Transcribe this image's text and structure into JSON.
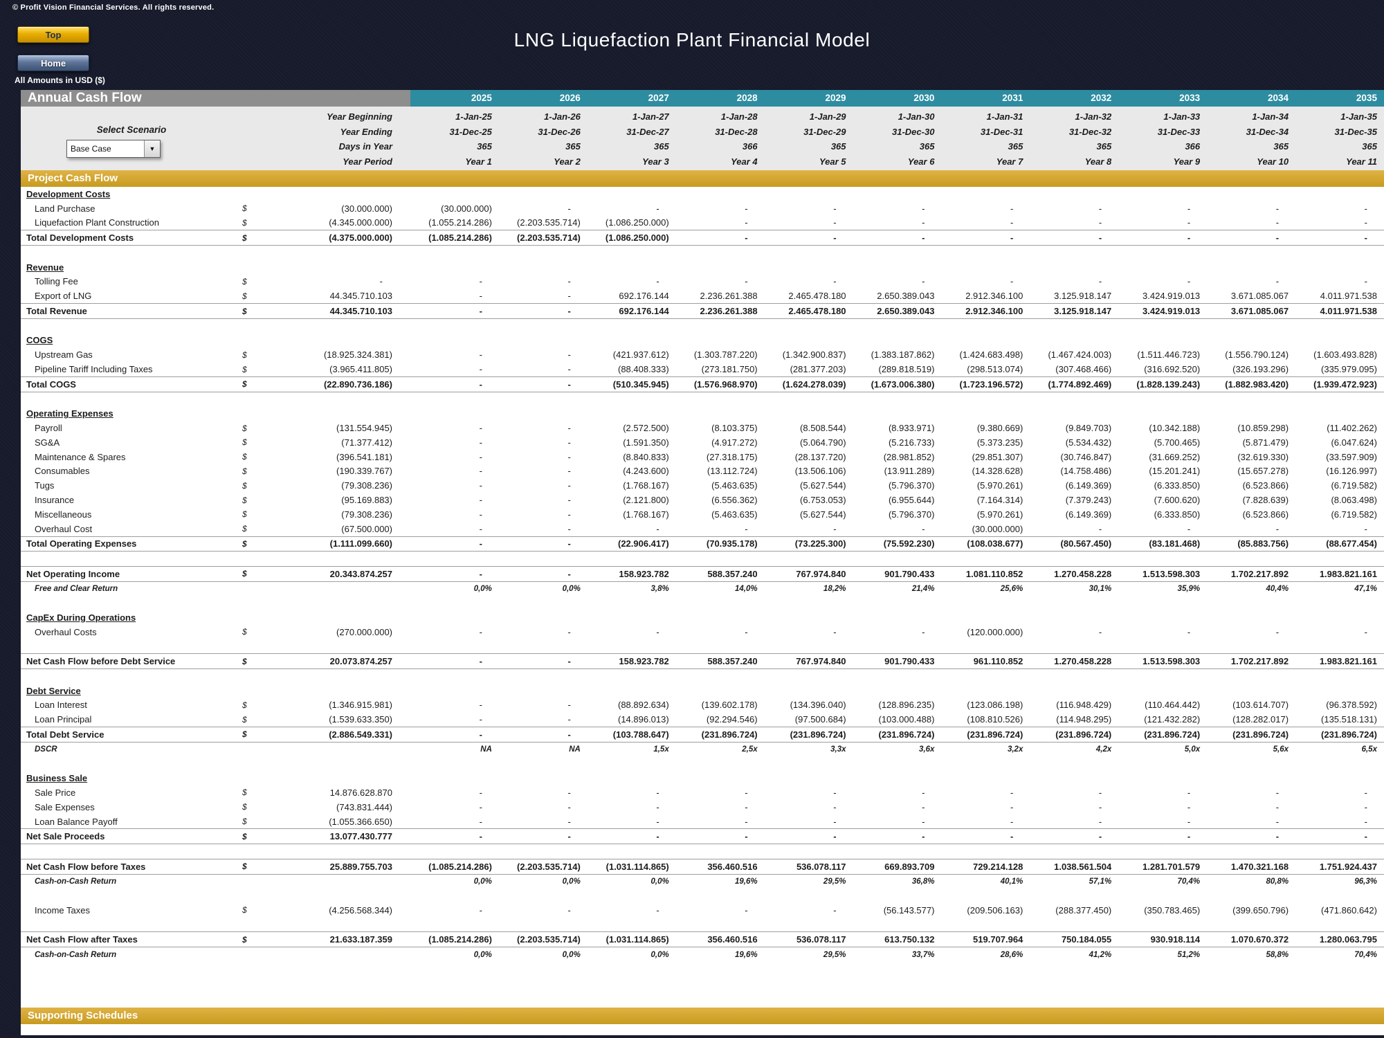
{
  "meta": {
    "copyright": "© Profit Vision Financial Services. All rights reserved.",
    "title": "LNG Liquefaction Plant Financial Model",
    "amounts_note": "All Amounts in  USD ($)"
  },
  "buttons": {
    "top": "Top",
    "home": "Home"
  },
  "scenario": {
    "label": "Select Scenario",
    "selected": "Base Case",
    "arrow_icon": "▼"
  },
  "colors": {
    "page_bg": "#161a2b",
    "teal_header": "#2d8ca0",
    "gray_header": "#8e8e8e",
    "gold_bar": "#cf9f2b",
    "gold_button": "#e8ad00",
    "home_button": "#5e7499",
    "teal_text": "#1b7f98",
    "info_band": "#e9e9ea"
  },
  "table": {
    "left_header": "Annual Cash Flow",
    "years": [
      "2025",
      "2026",
      "2027",
      "2028",
      "2029",
      "2030",
      "2031",
      "2032",
      "2033",
      "2034",
      "2035"
    ],
    "info_rows": [
      {
        "label": "Year Beginning",
        "values": [
          "1-Jan-25",
          "1-Jan-26",
          "1-Jan-27",
          "1-Jan-28",
          "1-Jan-29",
          "1-Jan-30",
          "1-Jan-31",
          "1-Jan-32",
          "1-Jan-33",
          "1-Jan-34",
          "1-Jan-35"
        ]
      },
      {
        "label": "Year Ending",
        "values": [
          "31-Dec-25",
          "31-Dec-26",
          "31-Dec-27",
          "31-Dec-28",
          "31-Dec-29",
          "31-Dec-30",
          "31-Dec-31",
          "31-Dec-32",
          "31-Dec-33",
          "31-Dec-34",
          "31-Dec-35"
        ]
      },
      {
        "label": "Days in Year",
        "values": [
          "365",
          "365",
          "365",
          "366",
          "365",
          "365",
          "365",
          "365",
          "366",
          "365",
          "365"
        ]
      },
      {
        "label": "Year Period",
        "values": [
          "Year 1",
          "Year 2",
          "Year 3",
          "Year 4",
          "Year 5",
          "Year 6",
          "Year 7",
          "Year 8",
          "Year 9",
          "Year 10",
          "Year 11"
        ]
      }
    ],
    "section_bar": "Project Cash Flow",
    "footer_bar": "Supporting Schedules",
    "rows": [
      {
        "t": "h",
        "label": "Development Costs"
      },
      {
        "t": "d",
        "label": "Land Purchase",
        "dollar": "$",
        "total": "(30.000.000)",
        "v": [
          "(30.000.000)",
          "-",
          "-",
          "-",
          "-",
          "-",
          "-",
          "-",
          "-",
          "-",
          "-"
        ]
      },
      {
        "t": "d",
        "label": "Liquefaction Plant Construction",
        "dollar": "$",
        "total": "(4.345.000.000)",
        "v": [
          "(1.055.214.286)",
          "(2.203.535.714)",
          "(1.086.250.000)",
          "-",
          "-",
          "-",
          "-",
          "-",
          "-",
          "-",
          "-"
        ]
      },
      {
        "t": "t",
        "label": "Total Development Costs",
        "dollar": "$",
        "total": "(4.375.000.000)",
        "v": [
          "(1.085.214.286)",
          "(2.203.535.714)",
          "(1.086.250.000)",
          "-",
          "-",
          "-",
          "-",
          "-",
          "-",
          "-",
          "-"
        ]
      },
      {
        "t": "g"
      },
      {
        "t": "h",
        "label": "Revenue"
      },
      {
        "t": "d",
        "label": "Tolling Fee",
        "dollar": "$",
        "total": "-",
        "v": [
          "-",
          "-",
          "-",
          "-",
          "-",
          "-",
          "-",
          "-",
          "-",
          "-",
          "-"
        ]
      },
      {
        "t": "d",
        "label": "Export of LNG",
        "dollar": "$",
        "total": "44.345.710.103",
        "v": [
          "-",
          "-",
          "692.176.144",
          "2.236.261.388",
          "2.465.478.180",
          "2.650.389.043",
          "2.912.346.100",
          "3.125.918.147",
          "3.424.919.013",
          "3.671.085.067",
          "4.011.971.538"
        ]
      },
      {
        "t": "t",
        "label": "Total Revenue",
        "dollar": "$",
        "total": "44.345.710.103",
        "v": [
          "-",
          "-",
          "692.176.144",
          "2.236.261.388",
          "2.465.478.180",
          "2.650.389.043",
          "2.912.346.100",
          "3.125.918.147",
          "3.424.919.013",
          "3.671.085.067",
          "4.011.971.538"
        ]
      },
      {
        "t": "g"
      },
      {
        "t": "h",
        "label": "COGS"
      },
      {
        "t": "d",
        "label": "Upstream Gas",
        "dollar": "$",
        "total": "(18.925.324.381)",
        "v": [
          "-",
          "-",
          "(421.937.612)",
          "(1.303.787.220)",
          "(1.342.900.837)",
          "(1.383.187.862)",
          "(1.424.683.498)",
          "(1.467.424.003)",
          "(1.511.446.723)",
          "(1.556.790.124)",
          "(1.603.493.828)"
        ]
      },
      {
        "t": "d",
        "label": "Pipeline Tariff Including Taxes",
        "dollar": "$",
        "total": "(3.965.411.805)",
        "v": [
          "-",
          "-",
          "(88.408.333)",
          "(273.181.750)",
          "(281.377.203)",
          "(289.818.519)",
          "(298.513.074)",
          "(307.468.466)",
          "(316.692.520)",
          "(326.193.296)",
          "(335.979.095)"
        ]
      },
      {
        "t": "t",
        "label": "Total COGS",
        "dollar": "$",
        "total": "(22.890.736.186)",
        "v": [
          "-",
          "-",
          "(510.345.945)",
          "(1.576.968.970)",
          "(1.624.278.039)",
          "(1.673.006.380)",
          "(1.723.196.572)",
          "(1.774.892.469)",
          "(1.828.139.243)",
          "(1.882.983.420)",
          "(1.939.472.923)"
        ]
      },
      {
        "t": "g"
      },
      {
        "t": "h",
        "label": "Operating Expenses"
      },
      {
        "t": "d",
        "label": "Payroll",
        "dollar": "$",
        "total": "(131.554.945)",
        "v": [
          "-",
          "-",
          "(2.572.500)",
          "(8.103.375)",
          "(8.508.544)",
          "(8.933.971)",
          "(9.380.669)",
          "(9.849.703)",
          "(10.342.188)",
          "(10.859.298)",
          "(11.402.262)"
        ]
      },
      {
        "t": "d",
        "label": "SG&A",
        "dollar": "$",
        "total": "(71.377.412)",
        "v": [
          "-",
          "-",
          "(1.591.350)",
          "(4.917.272)",
          "(5.064.790)",
          "(5.216.733)",
          "(5.373.235)",
          "(5.534.432)",
          "(5.700.465)",
          "(5.871.479)",
          "(6.047.624)"
        ]
      },
      {
        "t": "d",
        "label": "Maintenance & Spares",
        "dollar": "$",
        "total": "(396.541.181)",
        "v": [
          "-",
          "-",
          "(8.840.833)",
          "(27.318.175)",
          "(28.137.720)",
          "(28.981.852)",
          "(29.851.307)",
          "(30.746.847)",
          "(31.669.252)",
          "(32.619.330)",
          "(33.597.909)"
        ]
      },
      {
        "t": "d",
        "label": "Consumables",
        "dollar": "$",
        "total": "(190.339.767)",
        "v": [
          "-",
          "-",
          "(4.243.600)",
          "(13.112.724)",
          "(13.506.106)",
          "(13.911.289)",
          "(14.328.628)",
          "(14.758.486)",
          "(15.201.241)",
          "(15.657.278)",
          "(16.126.997)"
        ]
      },
      {
        "t": "d",
        "label": "Tugs",
        "dollar": "$",
        "total": "(79.308.236)",
        "v": [
          "-",
          "-",
          "(1.768.167)",
          "(5.463.635)",
          "(5.627.544)",
          "(5.796.370)",
          "(5.970.261)",
          "(6.149.369)",
          "(6.333.850)",
          "(6.523.866)",
          "(6.719.582)"
        ]
      },
      {
        "t": "d",
        "label": "Insurance",
        "dollar": "$",
        "total": "(95.169.883)",
        "v": [
          "-",
          "-",
          "(2.121.800)",
          "(6.556.362)",
          "(6.753.053)",
          "(6.955.644)",
          "(7.164.314)",
          "(7.379.243)",
          "(7.600.620)",
          "(7.828.639)",
          "(8.063.498)"
        ]
      },
      {
        "t": "d",
        "label": "Miscellaneous",
        "dollar": "$",
        "total": "(79.308.236)",
        "v": [
          "-",
          "-",
          "(1.768.167)",
          "(5.463.635)",
          "(5.627.544)",
          "(5.796.370)",
          "(5.970.261)",
          "(6.149.369)",
          "(6.333.850)",
          "(6.523.866)",
          "(6.719.582)"
        ]
      },
      {
        "t": "d",
        "label": "Overhaul Cost",
        "dollar": "$",
        "total": "(67.500.000)",
        "v": [
          "-",
          "-",
          "-",
          "-",
          "-",
          "-",
          "(30.000.000)",
          "-",
          "-",
          "-",
          "-"
        ]
      },
      {
        "t": "t",
        "label": "Total Operating Expenses",
        "dollar": "$",
        "total": "(1.111.099.660)",
        "v": [
          "-",
          "-",
          "(22.906.417)",
          "(70.935.178)",
          "(73.225.300)",
          "(75.592.230)",
          "(108.038.677)",
          "(80.567.450)",
          "(83.181.468)",
          "(85.883.756)",
          "(88.677.454)"
        ]
      },
      {
        "t": "g"
      },
      {
        "t": "t",
        "label": "Net Operating Income",
        "dollar": "$",
        "total": "20.343.874.257",
        "v": [
          "-",
          "-",
          "158.923.782",
          "588.357.240",
          "767.974.840",
          "901.790.433",
          "1.081.110.852",
          "1.270.458.228",
          "1.513.598.303",
          "1.702.217.892",
          "1.983.821.161"
        ]
      },
      {
        "t": "r",
        "label": "Free and Clear Return",
        "v": [
          "0,0%",
          "0,0%",
          "3,8%",
          "14,0%",
          "18,2%",
          "21,4%",
          "25,6%",
          "30,1%",
          "35,9%",
          "40,4%",
          "47,1%"
        ]
      },
      {
        "t": "g"
      },
      {
        "t": "h",
        "label": "CapEx During Operations"
      },
      {
        "t": "d",
        "label": "Overhaul Costs",
        "dollar": "$",
        "total": "(270.000.000)",
        "v": [
          "-",
          "-",
          "-",
          "-",
          "-",
          "-",
          "(120.000.000)",
          "-",
          "-",
          "-",
          "-"
        ]
      },
      {
        "t": "g"
      },
      {
        "t": "t",
        "label": "Net Cash Flow before Debt Service",
        "dollar": "$",
        "total": "20.073.874.257",
        "v": [
          "-",
          "-",
          "158.923.782",
          "588.357.240",
          "767.974.840",
          "901.790.433",
          "961.110.852",
          "1.270.458.228",
          "1.513.598.303",
          "1.702.217.892",
          "1.983.821.161"
        ]
      },
      {
        "t": "g"
      },
      {
        "t": "h",
        "label": "Debt Service"
      },
      {
        "t": "d",
        "label": "Loan Interest",
        "dollar": "$",
        "total": "(1.346.915.981)",
        "v": [
          "-",
          "-",
          "(88.892.634)",
          "(139.602.178)",
          "(134.396.040)",
          "(128.896.235)",
          "(123.086.198)",
          "(116.948.429)",
          "(110.464.442)",
          "(103.614.707)",
          "(96.378.592)"
        ]
      },
      {
        "t": "d",
        "label": "Loan Principal",
        "dollar": "$",
        "total": "(1.539.633.350)",
        "v": [
          "-",
          "-",
          "(14.896.013)",
          "(92.294.546)",
          "(97.500.684)",
          "(103.000.488)",
          "(108.810.526)",
          "(114.948.295)",
          "(121.432.282)",
          "(128.282.017)",
          "(135.518.131)"
        ]
      },
      {
        "t": "t",
        "label": "Total Debt Service",
        "dollar": "$",
        "total": "(2.886.549.331)",
        "v": [
          "-",
          "-",
          "(103.788.647)",
          "(231.896.724)",
          "(231.896.724)",
          "(231.896.724)",
          "(231.896.724)",
          "(231.896.724)",
          "(231.896.724)",
          "(231.896.724)",
          "(231.896.724)"
        ]
      },
      {
        "t": "r",
        "label": "DSCR",
        "v": [
          "NA",
          "NA",
          "1,5x",
          "2,5x",
          "3,3x",
          "3,6x",
          "3,2x",
          "4,2x",
          "5,0x",
          "5,6x",
          "6,5x"
        ]
      },
      {
        "t": "g"
      },
      {
        "t": "h",
        "label": "Business Sale"
      },
      {
        "t": "d",
        "label": "Sale Price",
        "dollar": "$",
        "total": "14.876.628.870",
        "v": [
          "-",
          "-",
          "-",
          "-",
          "-",
          "-",
          "-",
          "-",
          "-",
          "-",
          "-"
        ]
      },
      {
        "t": "d",
        "label": "Sale Expenses",
        "dollar": "$",
        "total": "(743.831.444)",
        "v": [
          "-",
          "-",
          "-",
          "-",
          "-",
          "-",
          "-",
          "-",
          "-",
          "-",
          "-"
        ]
      },
      {
        "t": "d",
        "label": "Loan Balance Payoff",
        "dollar": "$",
        "total": "(1.055.366.650)",
        "v": [
          "-",
          "-",
          "-",
          "-",
          "-",
          "-",
          "-",
          "-",
          "-",
          "-",
          "-"
        ]
      },
      {
        "t": "t",
        "label": "Net Sale Proceeds",
        "dollar": "$",
        "total": "13.077.430.777",
        "v": [
          "-",
          "-",
          "-",
          "-",
          "-",
          "-",
          "-",
          "-",
          "-",
          "-",
          "-"
        ]
      },
      {
        "t": "g"
      },
      {
        "t": "t",
        "label": "Net Cash Flow before Taxes",
        "dollar": "$",
        "total": "25.889.755.703",
        "v": [
          "(1.085.214.286)",
          "(2.203.535.714)",
          "(1.031.114.865)",
          "356.460.516",
          "536.078.117",
          "669.893.709",
          "729.214.128",
          "1.038.561.504",
          "1.281.701.579",
          "1.470.321.168",
          "1.751.924.437"
        ]
      },
      {
        "t": "r",
        "label": "Cash-on-Cash Return",
        "v": [
          "0,0%",
          "0,0%",
          "0,0%",
          "19,6%",
          "29,5%",
          "36,8%",
          "40,1%",
          "57,1%",
          "70,4%",
          "80,8%",
          "96,3%"
        ]
      },
      {
        "t": "g"
      },
      {
        "t": "d",
        "label": "Income Taxes",
        "dollar": "$",
        "total": "(4.256.568.344)",
        "v": [
          "-",
          "-",
          "-",
          "-",
          "-",
          "(56.143.577)",
          "(209.506.163)",
          "(288.377.450)",
          "(350.783.465)",
          "(399.650.796)",
          "(471.860.642)"
        ]
      },
      {
        "t": "g"
      },
      {
        "t": "t",
        "label": "Net Cash Flow after Taxes",
        "dollar": "$",
        "total": "21.633.187.359",
        "v": [
          "(1.085.214.286)",
          "(2.203.535.714)",
          "(1.031.114.865)",
          "356.460.516",
          "536.078.117",
          "613.750.132",
          "519.707.964",
          "750.184.055",
          "930.918.114",
          "1.070.670.372",
          "1.280.063.795"
        ]
      },
      {
        "t": "r",
        "label": "Cash-on-Cash Return",
        "v": [
          "0,0%",
          "0,0%",
          "0,0%",
          "19,6%",
          "29,5%",
          "33,7%",
          "28,6%",
          "41,2%",
          "51,2%",
          "58,8%",
          "70,4%"
        ]
      }
    ]
  }
}
